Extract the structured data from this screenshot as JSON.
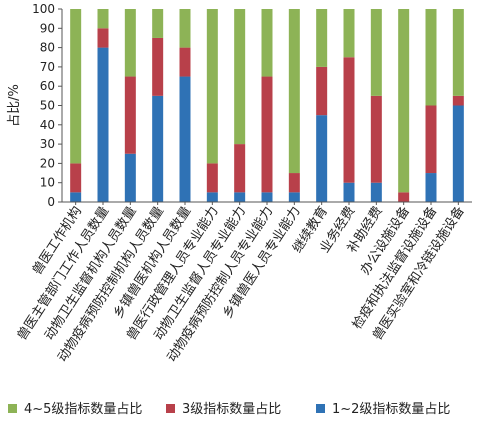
{
  "chart_data": {
    "type": "bar",
    "stacked": true,
    "ylabel": "占比/%",
    "ylim": [
      0,
      100
    ],
    "yticks": [
      "0",
      "10",
      "20",
      "30",
      "40",
      "50",
      "60",
      "70",
      "80",
      "90",
      "100"
    ],
    "grid": false,
    "legend_position": "bottom",
    "categories": [
      "兽医工作机构",
      "兽医主管部门工作人员数量",
      "动物卫生监督机构人员数量",
      "动物疫病预防控制机构人员数量",
      "乡镇兽医机构人员数量",
      "兽医行政管理人员专业能力",
      "动物卫生监督人员专业能力",
      "动物疫病预防控制人员专业能力",
      "乡镇兽医人员专业能力",
      "继续教育",
      "业务经费",
      "补助经费",
      "办公设施设备",
      "检疫和执法监督设施设备",
      "兽医实验室和冷链设施设备"
    ],
    "series": [
      {
        "name": "4~5级指标数量占比",
        "color": "#8db356",
        "values": [
          80,
          10,
          35,
          15,
          20,
          80,
          70,
          35,
          85,
          30,
          25,
          45,
          95,
          50,
          45
        ]
      },
      {
        "name": "3级指标数量占比",
        "color": "#b8404a",
        "values": [
          15,
          10,
          40,
          30,
          15,
          15,
          25,
          60,
          10,
          25,
          65,
          45,
          5,
          35,
          5
        ]
      },
      {
        "name": "1~2级指标数量占比",
        "color": "#2f72b5",
        "values": [
          5,
          80,
          25,
          55,
          65,
          5,
          5,
          5,
          5,
          45,
          10,
          10,
          0,
          15,
          50
        ]
      }
    ]
  }
}
